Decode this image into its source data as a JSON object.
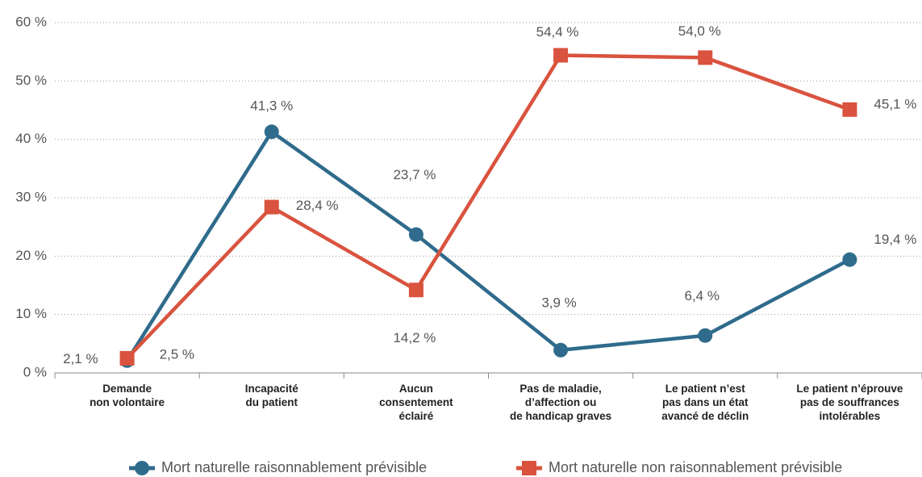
{
  "chart_data": {
    "type": "line",
    "categories": [
      "Demande\nnon volontaire",
      "Incapacité\ndu patient",
      "Aucun\nconsentement\néclairé",
      "Pas de maladie,\nd’affection ou\nde handicap graves",
      "Le patient n’est\npas dans un état\navancé de déclin",
      "Le patient n’éprouve\npas de souffrances\nintolérables"
    ],
    "series": [
      {
        "name": "Mort naturelle raisonnablement prévisible",
        "color": "#2f6b8c",
        "marker": "circle",
        "values": [
          2.1,
          41.3,
          23.7,
          3.9,
          6.4,
          19.4
        ],
        "value_labels": [
          "2,1 %",
          "41,3 %",
          "23,7 %",
          "3,9 %",
          "6,4 %",
          "19,4 %"
        ]
      },
      {
        "name": "Mort naturelle non raisonnablement prévisible",
        "color": "#d9533f",
        "marker": "square",
        "values": [
          2.5,
          28.4,
          14.2,
          54.4,
          54.0,
          45.1
        ],
        "value_labels": [
          "2,5 %",
          "28,4 %",
          "14,2 %",
          "54,4 %",
          "54,0 %",
          "45,1 %"
        ]
      }
    ],
    "ylim": [
      0,
      60
    ],
    "yticks": [
      {
        "value": 0,
        "label": "0 %"
      },
      {
        "value": 10,
        "label": "10 %"
      },
      {
        "value": 20,
        "label": "20 %"
      },
      {
        "value": 30,
        "label": "30 %"
      },
      {
        "value": 40,
        "label": "40 %"
      },
      {
        "value": 50,
        "label": "50 %"
      },
      {
        "value": 60,
        "label": "60 %"
      }
    ],
    "grid": true,
    "legend": "bottom"
  }
}
